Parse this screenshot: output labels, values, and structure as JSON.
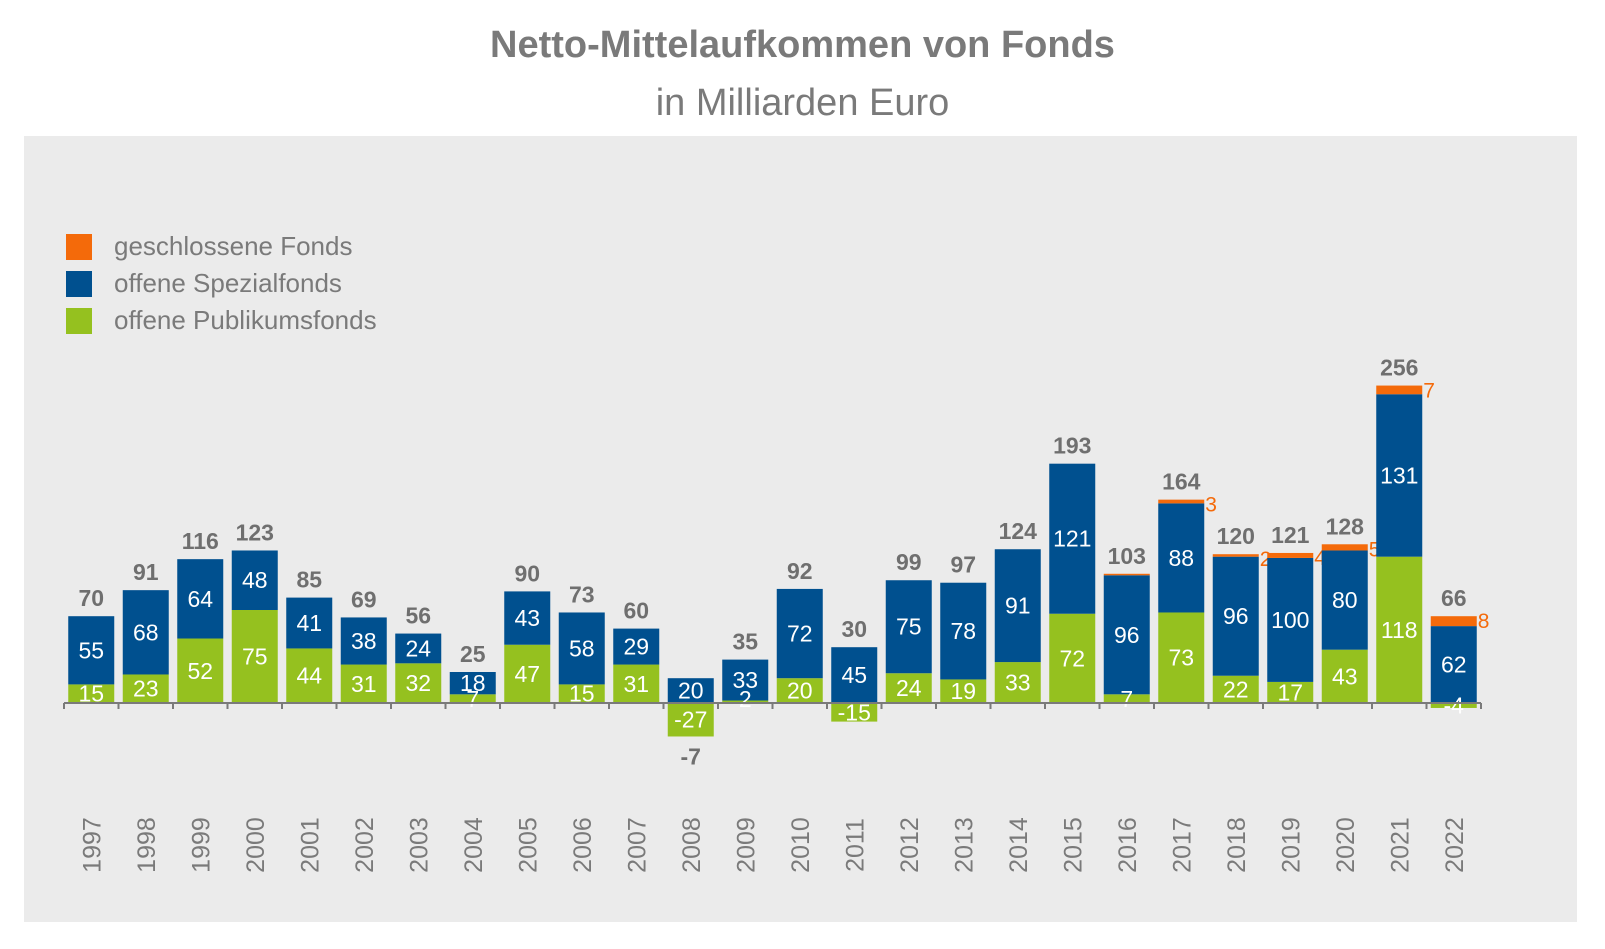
{
  "chart_data": {
    "type": "bar",
    "stacked": true,
    "title": "Netto-Mittelaufkommen von Fonds",
    "subtitle": "in Milliarden Euro",
    "xlabel": "",
    "ylabel": "",
    "legend_position": "top-left",
    "grid": false,
    "categories": [
      "1997",
      "1998",
      "1999",
      "2000",
      "2001",
      "2002",
      "2003",
      "2004",
      "2005",
      "2006",
      "2007",
      "2008",
      "2009",
      "2010",
      "2011",
      "2012",
      "2013",
      "2014",
      "2015",
      "2016",
      "2017",
      "2018",
      "2019",
      "2020",
      "2021",
      "2022"
    ],
    "series": [
      {
        "name": "offene Publikumsfonds",
        "color": "#95c11f",
        "values": [
          15,
          23,
          52,
          75,
          44,
          31,
          32,
          7,
          47,
          15,
          31,
          -27,
          2,
          20,
          -15,
          24,
          19,
          33,
          72,
          7,
          73,
          22,
          17,
          43,
          118,
          -4
        ]
      },
      {
        "name": "offene Spezialfonds",
        "color": "#00508f",
        "values": [
          55,
          68,
          64,
          48,
          41,
          38,
          24,
          18,
          43,
          58,
          29,
          20,
          33,
          72,
          45,
          75,
          78,
          91,
          121,
          96,
          88,
          96,
          100,
          80,
          131,
          62
        ]
      },
      {
        "name": "geschlossene Fonds",
        "color": "#f46a0a",
        "values": [
          null,
          null,
          null,
          null,
          null,
          null,
          null,
          null,
          null,
          null,
          null,
          null,
          null,
          null,
          null,
          null,
          null,
          null,
          null,
          0.5,
          3,
          2,
          4,
          5,
          7,
          8
        ],
        "labels": [
          "",
          "",
          "",
          "",
          "",
          "",
          "",
          "",
          "",
          "",
          "",
          "",
          "",
          "",
          "",
          "",
          "",
          "",
          "",
          "",
          "3",
          "2",
          "4",
          "5",
          "7",
          "8"
        ]
      }
    ],
    "totals": [
      "70",
      "91",
      "116",
      "123",
      "85",
      "69",
      "56",
      "25",
      "90",
      "73",
      "60",
      "-7",
      "35",
      "92",
      "30",
      "99",
      "97",
      "124",
      "193",
      "103",
      "164",
      "120",
      "121",
      "128",
      "256",
      "66"
    ]
  },
  "legend": [
    {
      "label": "geschlossene Fonds",
      "color": "#f46a0a"
    },
    {
      "label": "offene Spezialfonds",
      "color": "#00508f"
    },
    {
      "label": "offene Publikumsfonds",
      "color": "#95c11f"
    }
  ]
}
